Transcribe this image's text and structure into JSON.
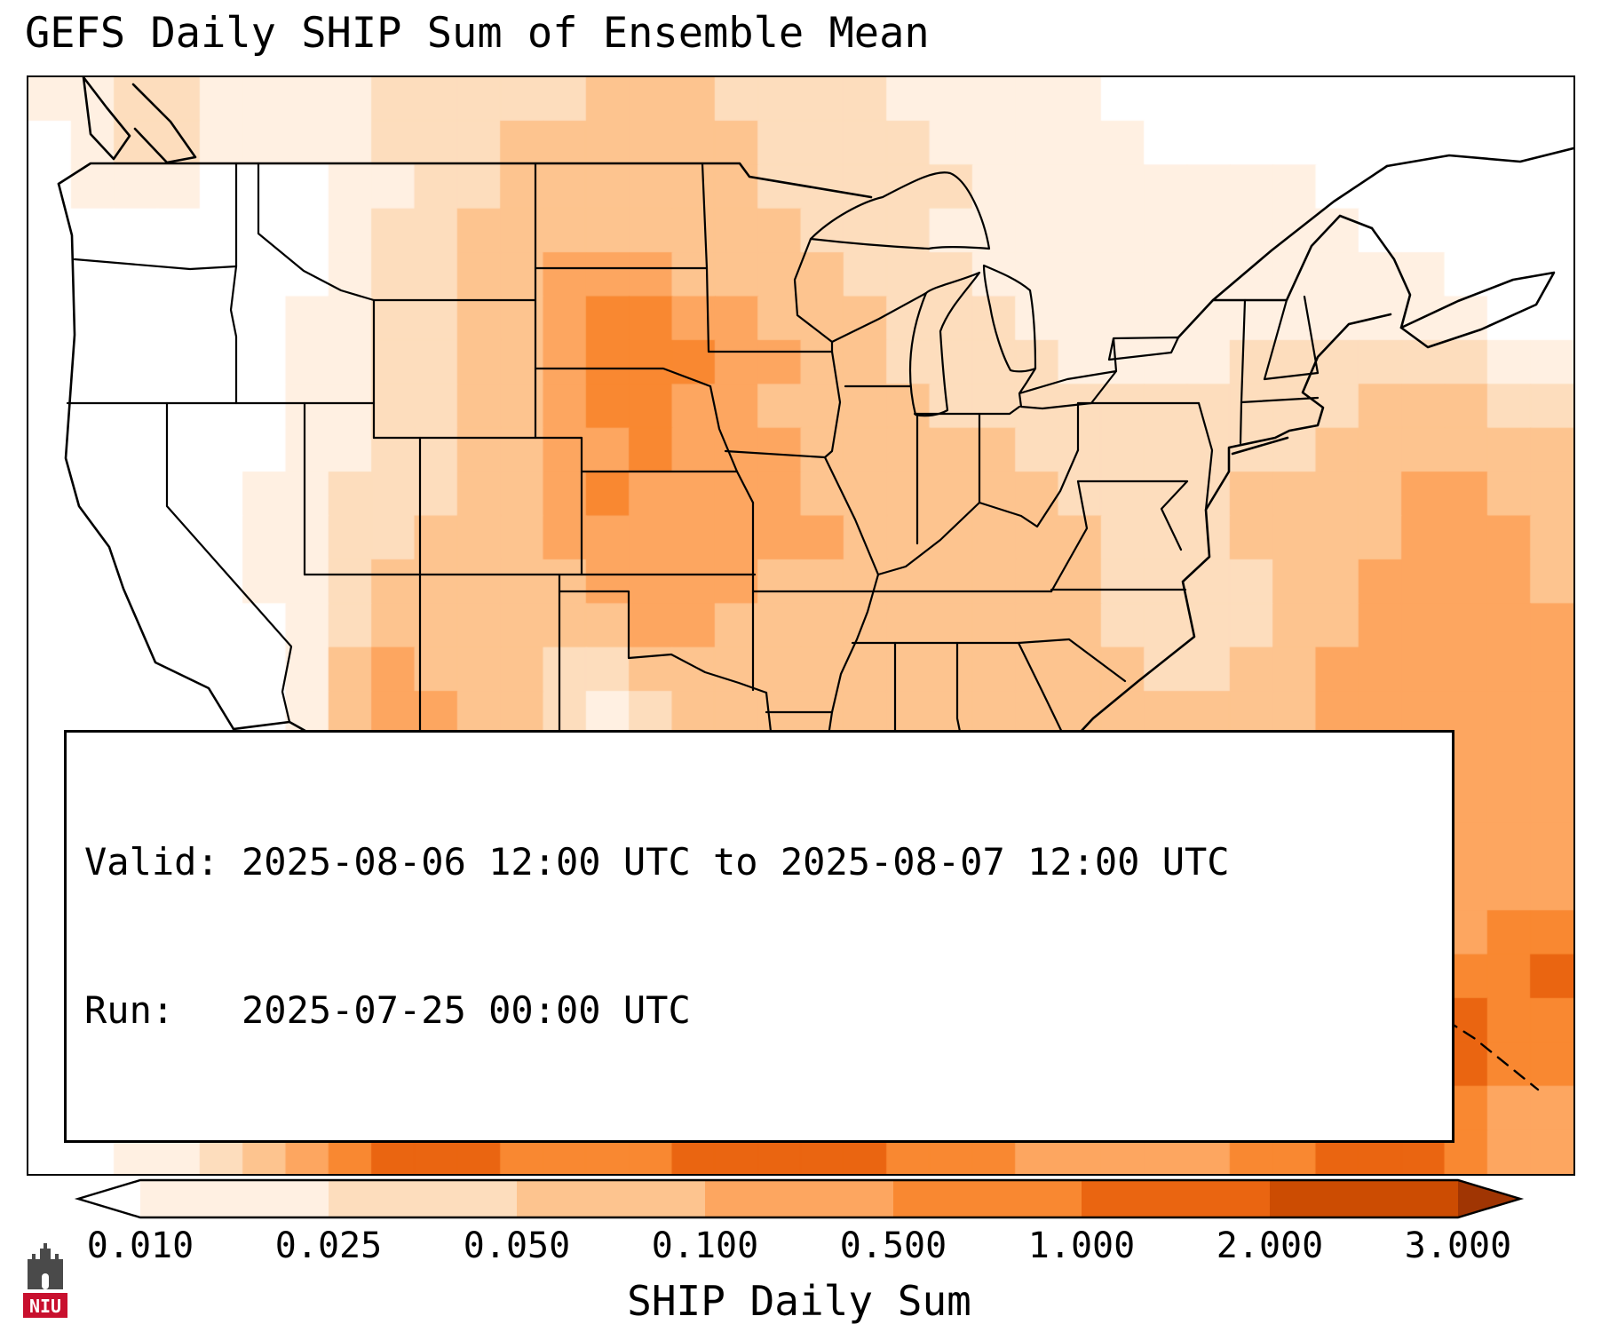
{
  "title": "GEFS Daily SHIP Sum of Ensemble Mean",
  "info_box": {
    "valid_line": "Valid: 2025-08-06 12:00 UTC to 2025-08-07 12:00 UTC",
    "run_line": "Run:   2025-07-25 00:00 UTC"
  },
  "colorbar": {
    "label": "SHIP Daily Sum",
    "tick_labels": [
      "0.010",
      "0.025",
      "0.050",
      "0.100",
      "0.500",
      "1.000",
      "2.000",
      "3.000"
    ],
    "segment_colors": [
      "#fff0e2",
      "#fdddbd",
      "#fdc48f",
      "#fda660",
      "#f98831",
      "#ea6511",
      "#cc4c02"
    ],
    "under_color": "#ffffff",
    "over_color": "#a03503"
  },
  "logo": {
    "text": "NIU",
    "banner_color": "#c8102e",
    "castle_color": "#4a4a4a"
  },
  "chart_data": {
    "type": "heatmap",
    "title": "GEFS Daily SHIP Sum of Ensemble Mean",
    "parameter": "SHIP Daily Sum",
    "valid": "2025-08-06 12:00 UTC to 2025-08-07 12:00 UTC",
    "run": "2025-07-25 00:00 UTC",
    "levels": [
      0.01,
      0.025,
      0.05,
      0.1,
      0.5,
      1.0,
      2.0,
      3.0
    ],
    "colormap": "Oranges",
    "legend_position": "bottom",
    "palette": [
      "#ffffff",
      "#fff0e2",
      "#fdddbd",
      "#fdc48f",
      "#fda660",
      "#f98831",
      "#ea6511",
      "#cc4c02",
      "#a03503"
    ],
    "grid": {
      "cols": 36,
      "rows": 25,
      "note": "each character 0-8 indexes palette; coarse approximation of shaded field over CONUS",
      "rows_data": [
        "112211112222233322221111100000000000",
        "012211112223333332222111110000000000",
        "011100011223333332222211111111000000",
        "000000012233333333222111111111100000",
        "000000012233444333322211111111111000",
        "000000112233455443332221111111111100",
        "000000112233455544332222111122222211",
        "000000112233455443333222222222233322",
        "000000112233445444333332222222333333",
        "000001122233454444333333222233334433",
        "000001122333444444433333322233334443",
        "000001123333344443333333322223344443",
        "000000123333334433333333322223344444",
        "000000134333223333333333332233444444",
        "000000134433212333333333333333444444",
        "000001244332112233334443333334444444",
        "000001245432112233445544333444444444",
        "000001245432122334455544444444444444",
        "000001246532222233445544444444444444",
        "000001246543222334444444444444444455",
        "000011246643323334444444444444455556",
        "000011246654333344444444444444556655",
        "000012346654433344445554444444456655",
        "000112345655444455555554444445566544",
        "001123456665555666665554444455666544"
      ]
    }
  }
}
